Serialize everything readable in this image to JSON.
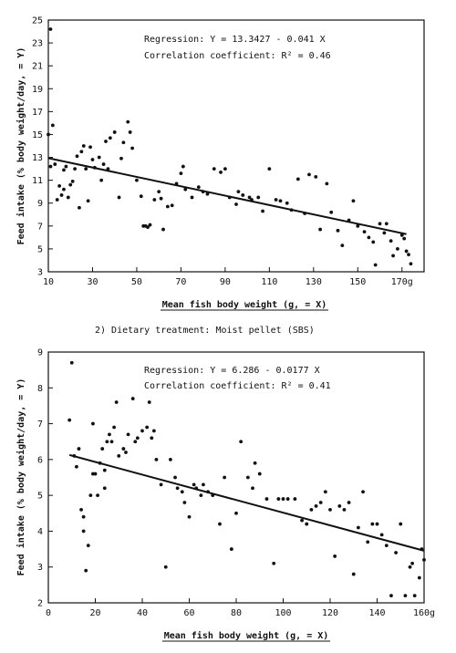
{
  "caption": "2) Dietary treatment: Moist pellet (SBS)",
  "chart_data": [
    {
      "type": "scatter",
      "title": "",
      "xlabel": "Mean fish body weight (g, = X)",
      "ylabel": "Feed intake (% body weight/day, = Y)",
      "xlim": [
        10,
        180
      ],
      "ylim": [
        3,
        25
      ],
      "x_ticks": [
        10,
        30,
        50,
        70,
        90,
        110,
        130,
        150,
        170
      ],
      "x_tick_labels": [
        "10",
        "30",
        "50",
        "70",
        "90",
        "110",
        "130",
        "150",
        "170g"
      ],
      "y_ticks": [
        3,
        5,
        7,
        9,
        11,
        13,
        15,
        17,
        19,
        21,
        23,
        25
      ],
      "y_tick_labels": [
        "3",
        "5",
        "7",
        "9",
        "11",
        "13",
        "15",
        "17",
        "19",
        "21",
        "23",
        "25"
      ],
      "annotation_regression": "Regression:  Y = 13.3427 - 0.041 X",
      "annotation_correlation": "Correlation coefficient: R² = 0.46",
      "regression": {
        "intercept": 13.3427,
        "slope": -0.041
      },
      "series": [
        {
          "points": [
            [
              11,
              24.2
            ],
            [
              10,
              15
            ],
            [
              12,
              15.8
            ],
            [
              13,
              12.4
            ],
            [
              11,
              12.2
            ],
            [
              14,
              9.3
            ],
            [
              15,
              10.5
            ],
            [
              16,
              9.7
            ],
            [
              17,
              10.2
            ],
            [
              17,
              11.9
            ],
            [
              18,
              12.2
            ],
            [
              19,
              9.5
            ],
            [
              20,
              10.6
            ],
            [
              21,
              10.9
            ],
            [
              22,
              12
            ],
            [
              23,
              13.1
            ],
            [
              24,
              8.6
            ],
            [
              25,
              13.5
            ],
            [
              26,
              14
            ],
            [
              27,
              12
            ],
            [
              28,
              9.2
            ],
            [
              29,
              13.9
            ],
            [
              30,
              12.8
            ],
            [
              31,
              12.1
            ],
            [
              33,
              13
            ],
            [
              34,
              11
            ],
            [
              35,
              12.4
            ],
            [
              36,
              14.4
            ],
            [
              37,
              12
            ],
            [
              38,
              14.7
            ],
            [
              40,
              15.2
            ],
            [
              42,
              9.5
            ],
            [
              43,
              12.9
            ],
            [
              44,
              14.3
            ],
            [
              46,
              16.1
            ],
            [
              47,
              15.2
            ],
            [
              48,
              13.8
            ],
            [
              50,
              11
            ],
            [
              52,
              9.6
            ],
            [
              53,
              7
            ],
            [
              54,
              7
            ],
            [
              55,
              6.9
            ],
            [
              56,
              7.1
            ],
            [
              58,
              9.3
            ],
            [
              60,
              10
            ],
            [
              61,
              9.4
            ],
            [
              62,
              6.7
            ],
            [
              64,
              8.7
            ],
            [
              66,
              8.8
            ],
            [
              68,
              10.7
            ],
            [
              70,
              11.6
            ],
            [
              71,
              12.2
            ],
            [
              72,
              10.2
            ],
            [
              75,
              9.5
            ],
            [
              78,
              10.4
            ],
            [
              80,
              10
            ],
            [
              82,
              9.8
            ],
            [
              85,
              12
            ],
            [
              88,
              11.7
            ],
            [
              90,
              12
            ],
            [
              92,
              9.5
            ],
            [
              95,
              8.9
            ],
            [
              96,
              10
            ],
            [
              98,
              9.7
            ],
            [
              101,
              9.5
            ],
            [
              102,
              9.3
            ],
            [
              105,
              9.5
            ],
            [
              107,
              8.3
            ],
            [
              110,
              12
            ],
            [
              113,
              9.3
            ],
            [
              115,
              9.2
            ],
            [
              118,
              9
            ],
            [
              120,
              8.4
            ],
            [
              123,
              11.1
            ],
            [
              126,
              8.1
            ],
            [
              128,
              11.5
            ],
            [
              131,
              11.3
            ],
            [
              133,
              6.7
            ],
            [
              136,
              10.7
            ],
            [
              138,
              8.2
            ],
            [
              141,
              6.6
            ],
            [
              143,
              5.3
            ],
            [
              146,
              7.5
            ],
            [
              148,
              9.2
            ],
            [
              150,
              7
            ],
            [
              153,
              6.5
            ],
            [
              155,
              6
            ],
            [
              157,
              5.6
            ],
            [
              158,
              3.6
            ],
            [
              160,
              7.2
            ],
            [
              162,
              6.4
            ],
            [
              163,
              7.2
            ],
            [
              165,
              5.7
            ],
            [
              166,
              4.4
            ],
            [
              168,
              5
            ],
            [
              170,
              6.2
            ],
            [
              171,
              5.9
            ],
            [
              172,
              4.8
            ],
            [
              173,
              4.5
            ],
            [
              174,
              3.7
            ]
          ]
        }
      ]
    },
    {
      "type": "scatter",
      "title": "",
      "xlabel": "Mean fish body weight (g, = X)",
      "ylabel": "Feed intake (% body weight/day, = Y)",
      "xlim": [
        0,
        160
      ],
      "ylim": [
        2,
        9
      ],
      "x_ticks": [
        0,
        20,
        40,
        60,
        80,
        100,
        120,
        140,
        160
      ],
      "x_tick_labels": [
        "0",
        "20",
        "40",
        "60",
        "80",
        "100",
        "120",
        "140",
        "160g"
      ],
      "y_ticks": [
        2,
        3,
        4,
        5,
        6,
        7,
        8,
        9
      ],
      "y_tick_labels": [
        "2",
        "3",
        "4",
        "5",
        "6",
        "7",
        "8",
        "9"
      ],
      "annotation_regression": "Regression:  Y = 6.286 - 0.0177 X",
      "annotation_correlation": "Correlation coefficient: R² = 0.41",
      "regression": {
        "intercept": 6.286,
        "slope": -0.0177
      },
      "series": [
        {
          "points": [
            [
              9,
              7.1
            ],
            [
              10,
              8.7
            ],
            [
              11,
              6.1
            ],
            [
              12,
              5.8
            ],
            [
              13,
              6.3
            ],
            [
              14,
              4.6
            ],
            [
              15,
              4.4
            ],
            [
              15,
              4
            ],
            [
              16,
              2.9
            ],
            [
              17,
              3.6
            ],
            [
              18,
              5
            ],
            [
              19,
              5.6
            ],
            [
              19,
              7
            ],
            [
              20,
              5.6
            ],
            [
              21,
              5
            ],
            [
              22,
              5.9
            ],
            [
              23,
              6.3
            ],
            [
              24,
              5.7
            ],
            [
              24,
              5.2
            ],
            [
              25,
              6.5
            ],
            [
              26,
              6.7
            ],
            [
              27,
              6.5
            ],
            [
              28,
              6.9
            ],
            [
              29,
              7.6
            ],
            [
              30,
              6.1
            ],
            [
              32,
              6.3
            ],
            [
              33,
              6.2
            ],
            [
              34,
              6.7
            ],
            [
              36,
              7.7
            ],
            [
              37,
              6.5
            ],
            [
              38,
              6.6
            ],
            [
              40,
              6.8
            ],
            [
              42,
              6.9
            ],
            [
              43,
              7.6
            ],
            [
              44,
              6.6
            ],
            [
              45,
              6.8
            ],
            [
              46,
              6
            ],
            [
              48,
              5.3
            ],
            [
              50,
              3
            ],
            [
              52,
              6
            ],
            [
              54,
              5.5
            ],
            [
              55,
              5.2
            ],
            [
              57,
              5.1
            ],
            [
              58,
              4.8
            ],
            [
              60,
              4.4
            ],
            [
              62,
              5.3
            ],
            [
              63,
              5.2
            ],
            [
              65,
              5
            ],
            [
              66,
              5.3
            ],
            [
              68,
              5.1
            ],
            [
              70,
              5
            ],
            [
              73,
              4.2
            ],
            [
              75,
              5.5
            ],
            [
              78,
              3.5
            ],
            [
              80,
              4.5
            ],
            [
              82,
              6.5
            ],
            [
              85,
              5.5
            ],
            [
              87,
              5.2
            ],
            [
              88,
              5.9
            ],
            [
              90,
              5.6
            ],
            [
              93,
              4.9
            ],
            [
              96,
              3.1
            ],
            [
              98,
              4.9
            ],
            [
              100,
              4.9
            ],
            [
              102,
              4.9
            ],
            [
              105,
              4.9
            ],
            [
              108,
              4.3
            ],
            [
              110,
              4.2
            ],
            [
              112,
              4.6
            ],
            [
              114,
              4.7
            ],
            [
              116,
              4.8
            ],
            [
              118,
              5.1
            ],
            [
              120,
              4.6
            ],
            [
              122,
              3.3
            ],
            [
              124,
              4.7
            ],
            [
              126,
              4.6
            ],
            [
              128,
              4.8
            ],
            [
              130,
              2.8
            ],
            [
              132,
              4.1
            ],
            [
              134,
              5.1
            ],
            [
              136,
              3.7
            ],
            [
              138,
              4.2
            ],
            [
              140,
              4.2
            ],
            [
              142,
              3.9
            ],
            [
              144,
              3.6
            ],
            [
              146,
              2.2
            ],
            [
              148,
              3.4
            ],
            [
              150,
              4.2
            ],
            [
              152,
              2.2
            ],
            [
              154,
              3
            ],
            [
              155,
              3.1
            ],
            [
              156,
              2.2
            ],
            [
              158,
              2.7
            ],
            [
              159,
              3.5
            ],
            [
              160,
              3.2
            ]
          ]
        }
      ]
    }
  ]
}
